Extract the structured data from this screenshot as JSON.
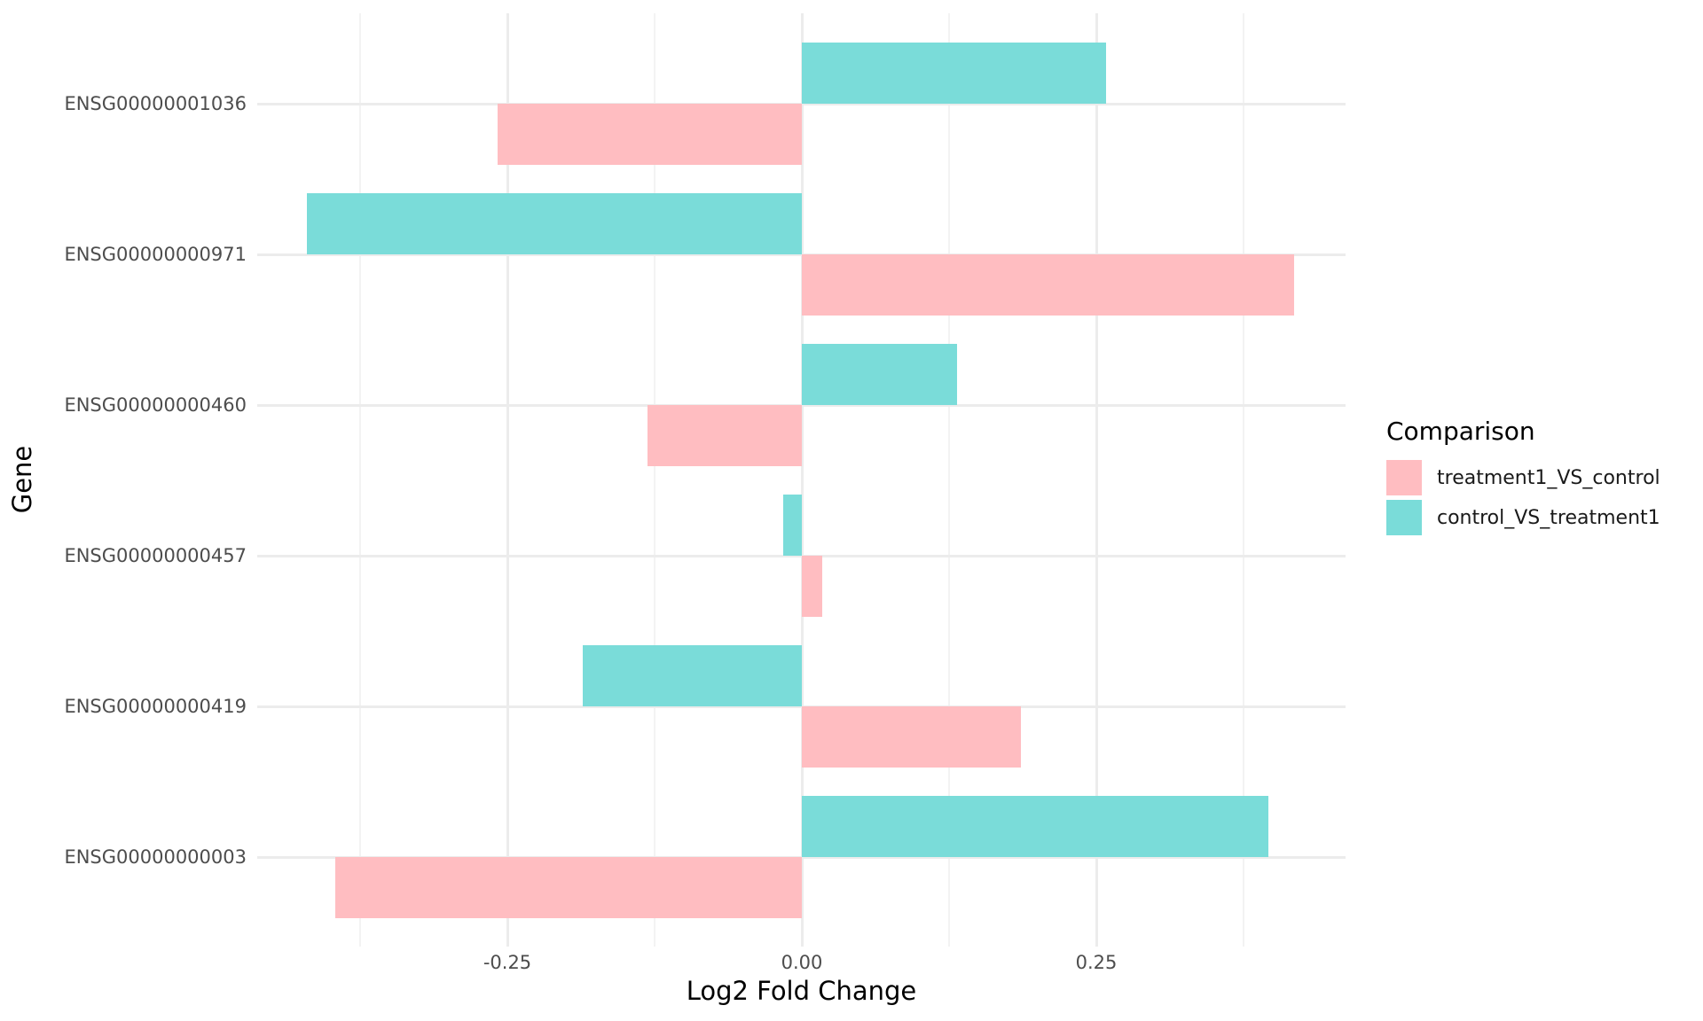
{
  "chart_data": {
    "type": "bar",
    "orientation": "horizontal",
    "title": "",
    "xlabel": "Log2 Fold Change",
    "ylabel": "Gene",
    "categories": [
      "ENSG00000001036",
      "ENSG00000000971",
      "ENSG00000000460",
      "ENSG00000000457",
      "ENSG00000000419",
      "ENSG00000000003"
    ],
    "series": [
      {
        "name": "treatment1_VS_control",
        "color": "#FFBDC1",
        "values": [
          -0.258,
          0.418,
          -0.131,
          0.017,
          0.186,
          -0.396
        ]
      },
      {
        "name": "control_VS_treatment1",
        "color": "#7ADCD9",
        "values": [
          0.258,
          -0.42,
          0.132,
          -0.016,
          -0.186,
          0.396
        ]
      }
    ],
    "xlim": [
      -0.462,
      0.462
    ],
    "x_ticks": {
      "values": [
        -0.25,
        0.0,
        0.25
      ],
      "labels": [
        "-0.25",
        "0.00",
        "0.25"
      ],
      "minor": [
        -0.375,
        -0.125,
        0.125,
        0.375
      ]
    },
    "grid": true,
    "legend": {
      "title": "Comparison",
      "position": "right"
    }
  },
  "styles": {
    "grid_major_color": "#ECECEC",
    "grid_minor_color": "#F3F3F3",
    "axis_text_color": "#4D4D4D",
    "title_text_color": "#000000",
    "background": "#FFFFFF"
  }
}
